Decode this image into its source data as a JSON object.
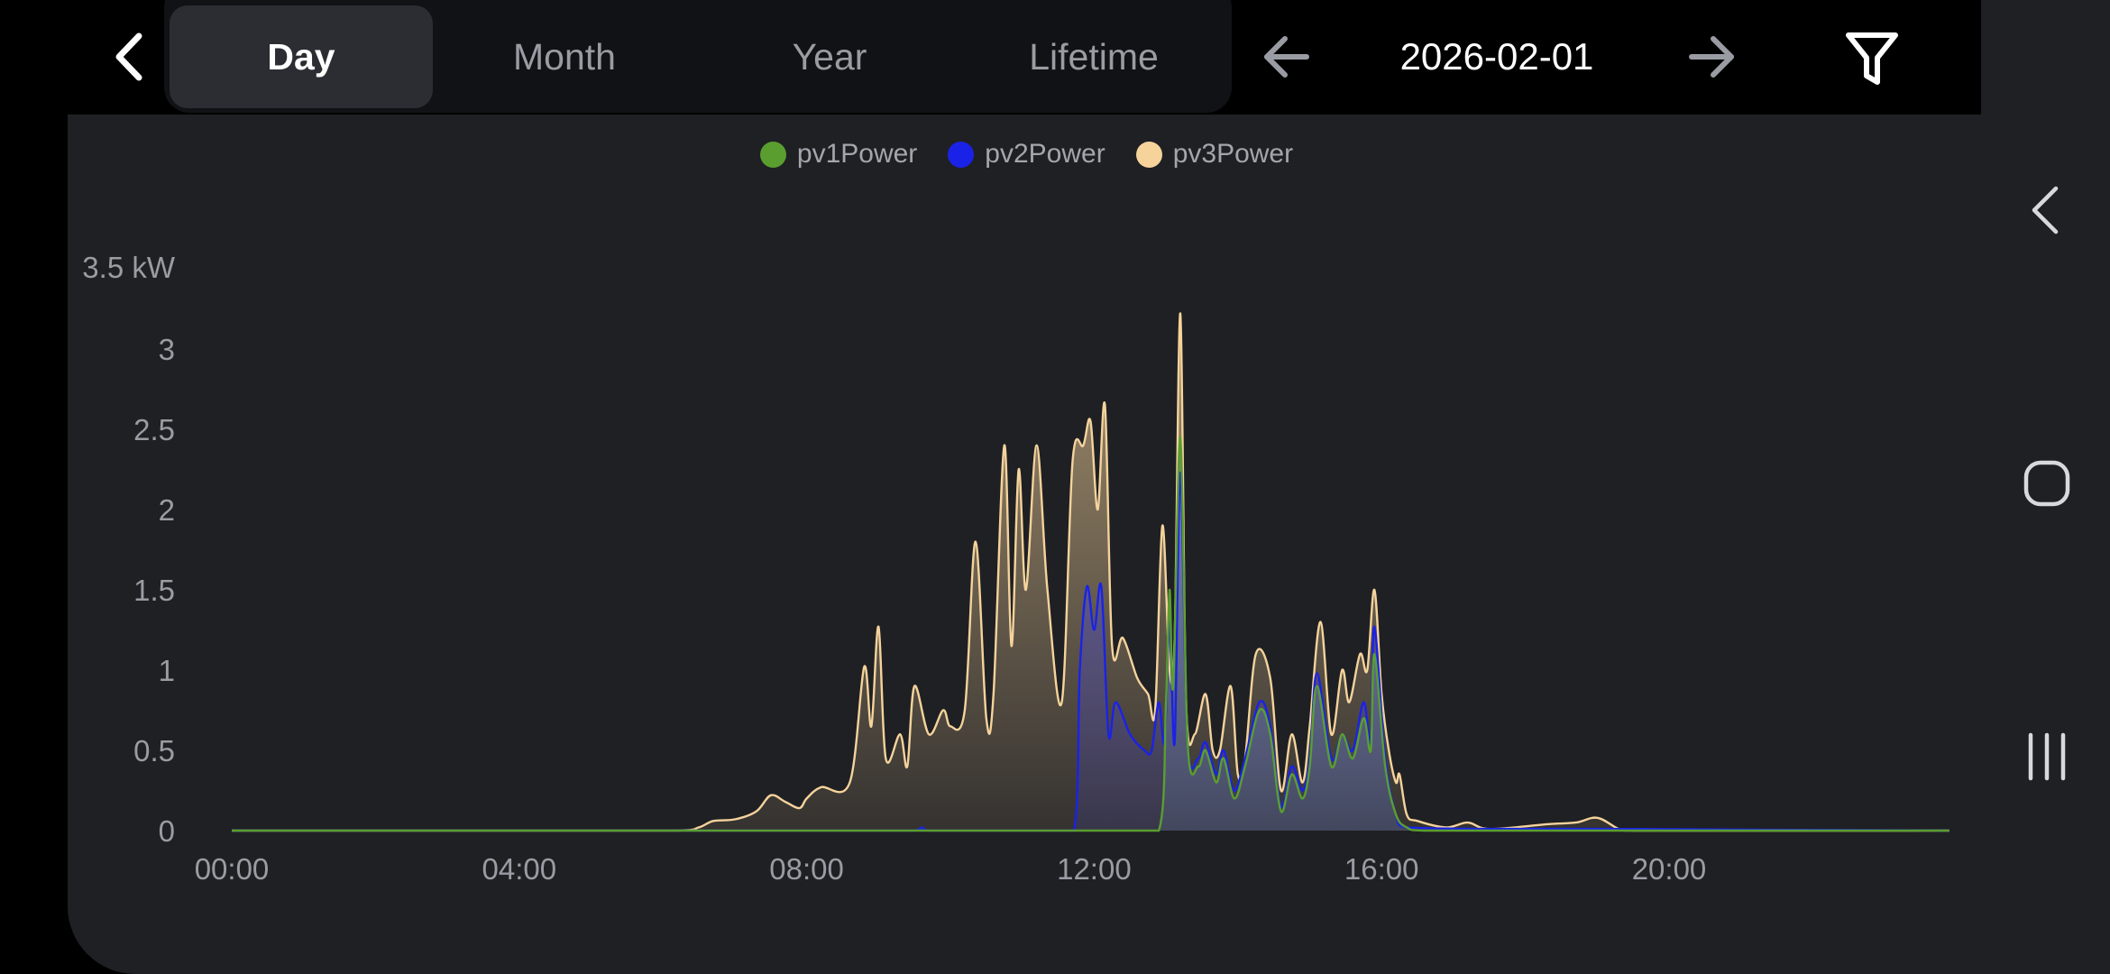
{
  "header": {
    "tabs": [
      {
        "label": "Day",
        "active": true
      },
      {
        "label": "Month",
        "active": false
      },
      {
        "label": "Year",
        "active": false
      },
      {
        "label": "Lifetime",
        "active": false
      }
    ],
    "date": "2026-02-01",
    "icons": [
      "back-chevron-icon",
      "arrow-left-icon",
      "arrow-right-icon",
      "filter-icon"
    ]
  },
  "system_nav": {
    "icons": [
      "back-icon",
      "home-icon",
      "recents-icon"
    ]
  },
  "chart_data": {
    "type": "area",
    "title": "",
    "xlabel": "",
    "ylabel": "kW",
    "y_unit_label": "3.5 kW",
    "xlim": [
      0,
      24
    ],
    "ylim": [
      0,
      3.5
    ],
    "x_ticks": [
      {
        "h": 0,
        "label": "00:00"
      },
      {
        "h": 4,
        "label": "04:00"
      },
      {
        "h": 8,
        "label": "08:00"
      },
      {
        "h": 12,
        "label": "12:00"
      },
      {
        "h": 16,
        "label": "16:00"
      },
      {
        "h": 20,
        "label": "20:00"
      }
    ],
    "y_ticks": [
      {
        "v": 0,
        "label": "0"
      },
      {
        "v": 0.5,
        "label": "0.5"
      },
      {
        "v": 1,
        "label": "1"
      },
      {
        "v": 1.5,
        "label": "1.5"
      },
      {
        "v": 2,
        "label": "2"
      },
      {
        "v": 2.5,
        "label": "2.5"
      },
      {
        "v": 3,
        "label": "3"
      }
    ],
    "legend_position": "top-center",
    "grid": false,
    "series": [
      {
        "name": "pv1Power",
        "color": "#5a9e2f",
        "x": [
          0,
          12.9,
          13.0,
          13.05,
          13.1,
          13.2,
          13.3,
          13.45,
          13.55,
          13.7,
          13.8,
          13.95,
          14.1,
          14.3,
          14.45,
          14.6,
          14.75,
          14.9,
          15.0,
          15.1,
          15.3,
          15.45,
          15.6,
          15.75,
          15.85,
          15.9,
          16.05,
          16.2,
          16.35,
          16.6,
          23.9
        ],
        "y": [
          0,
          0,
          0.8,
          1.5,
          0.9,
          2.45,
          0.55,
          0.4,
          0.5,
          0.3,
          0.45,
          0.2,
          0.4,
          0.75,
          0.6,
          0.12,
          0.35,
          0.2,
          0.4,
          0.9,
          0.4,
          0.6,
          0.45,
          0.7,
          0.5,
          1.1,
          0.4,
          0.1,
          0.02,
          0,
          0
        ]
      },
      {
        "name": "pv2Power",
        "color": "#1a22e8",
        "x": [
          0,
          9.5,
          9.6,
          9.7,
          11.72,
          11.8,
          11.9,
          12.0,
          12.1,
          12.2,
          12.3,
          12.5,
          12.7,
          12.8,
          12.9,
          12.98,
          13.05,
          13.12,
          13.2,
          13.3,
          13.45,
          13.55,
          13.7,
          13.8,
          13.95,
          14.1,
          14.3,
          14.45,
          14.6,
          14.75,
          14.9,
          15.0,
          15.1,
          15.3,
          15.45,
          15.6,
          15.75,
          15.85,
          15.9,
          16.05,
          16.2,
          16.35,
          19.5,
          23.9
        ],
        "y": [
          0,
          0,
          0.02,
          0,
          0,
          1.0,
          1.52,
          1.25,
          1.52,
          0.6,
          0.8,
          0.6,
          0.5,
          0.5,
          0.8,
          0.55,
          1.3,
          0.55,
          2.23,
          0.55,
          0.45,
          0.55,
          0.35,
          0.5,
          0.25,
          0.45,
          0.8,
          0.65,
          0.15,
          0.4,
          0.25,
          0.45,
          0.98,
          0.45,
          0.6,
          0.5,
          0.8,
          0.55,
          1.27,
          0.45,
          0.1,
          0.02,
          0.01,
          0
        ]
      },
      {
        "name": "pv3Power",
        "color": "#f5d39b",
        "x": [
          0,
          6.2,
          6.5,
          6.7,
          7.0,
          7.3,
          7.5,
          7.7,
          7.9,
          8.0,
          8.2,
          8.6,
          8.8,
          8.9,
          9.0,
          9.1,
          9.3,
          9.4,
          9.5,
          9.7,
          9.9,
          10.0,
          10.2,
          10.35,
          10.5,
          10.6,
          10.75,
          10.85,
          10.95,
          11.05,
          11.2,
          11.35,
          11.55,
          11.7,
          11.85,
          11.95,
          12.05,
          12.15,
          12.25,
          12.4,
          12.6,
          12.75,
          12.85,
          12.95,
          13.05,
          13.12,
          13.2,
          13.28,
          13.4,
          13.55,
          13.65,
          13.75,
          13.9,
          14.0,
          14.1,
          14.25,
          14.45,
          14.6,
          14.75,
          14.9,
          15.0,
          15.15,
          15.3,
          15.45,
          15.55,
          15.7,
          15.8,
          15.9,
          16.0,
          16.1,
          16.2,
          16.25,
          16.35,
          16.5,
          16.9,
          17.2,
          17.5,
          18.3,
          18.7,
          19.0,
          19.3,
          19.5,
          23.9
        ],
        "y": [
          0,
          0,
          0.02,
          0.06,
          0.07,
          0.12,
          0.22,
          0.18,
          0.14,
          0.2,
          0.27,
          0.3,
          1.02,
          0.65,
          1.27,
          0.45,
          0.6,
          0.4,
          0.9,
          0.6,
          0.75,
          0.65,
          0.75,
          1.8,
          0.7,
          0.85,
          2.4,
          1.15,
          2.25,
          1.5,
          2.4,
          1.5,
          0.8,
          2.3,
          2.4,
          2.55,
          2.0,
          2.65,
          1.15,
          1.2,
          0.95,
          0.85,
          0.75,
          1.9,
          1.0,
          1.2,
          3.22,
          0.8,
          0.6,
          0.85,
          0.5,
          0.5,
          0.9,
          0.35,
          0.45,
          1.1,
          0.95,
          0.25,
          0.6,
          0.3,
          0.65,
          1.3,
          0.6,
          1.0,
          0.8,
          1.1,
          1.0,
          1.5,
          0.85,
          0.5,
          0.3,
          0.35,
          0.1,
          0.06,
          0.02,
          0.05,
          0.01,
          0.04,
          0.05,
          0.08,
          0.01,
          0,
          0
        ]
      }
    ]
  }
}
